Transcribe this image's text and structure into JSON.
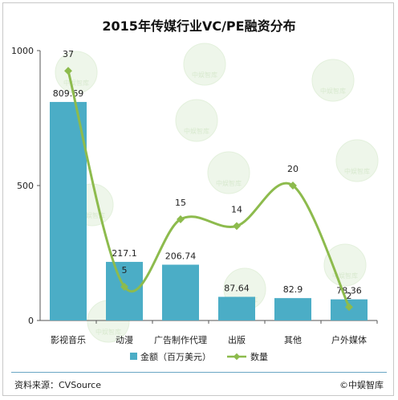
{
  "title": "2015年传媒行业VC/PE融资分布",
  "source_text": "资料来源：CVSource",
  "brand_text": "©中娱智库",
  "watermark_text": "中娱智库",
  "colors": {
    "bar": "#4badc6",
    "line": "#8dbb4d",
    "axis": "#555555"
  },
  "chart_data": {
    "type": "bar",
    "categories": [
      "影视音乐",
      "动漫",
      "广告制作代理",
      "出版",
      "其他",
      "户外媒体"
    ],
    "series": [
      {
        "name": "金额（百万美元）",
        "kind": "bar",
        "axis": "left",
        "values": [
          809.69,
          217.1,
          206.74,
          87.64,
          82.9,
          78.36
        ],
        "labels": [
          "809.69",
          "217.1",
          "206.74",
          "87.64",
          "82.9",
          "78.36"
        ]
      },
      {
        "name": "数量",
        "kind": "line",
        "axis": "right",
        "values": [
          37,
          5,
          15,
          14,
          20,
          2
        ],
        "labels": [
          "37",
          "5",
          "15",
          "14",
          "20",
          "2"
        ]
      }
    ],
    "y_ticks": [
      "1000",
      "500",
      "0"
    ],
    "ylim": [
      0,
      1000
    ],
    "y2lim": [
      0,
      40
    ],
    "legend": "bottom",
    "grid": false
  }
}
